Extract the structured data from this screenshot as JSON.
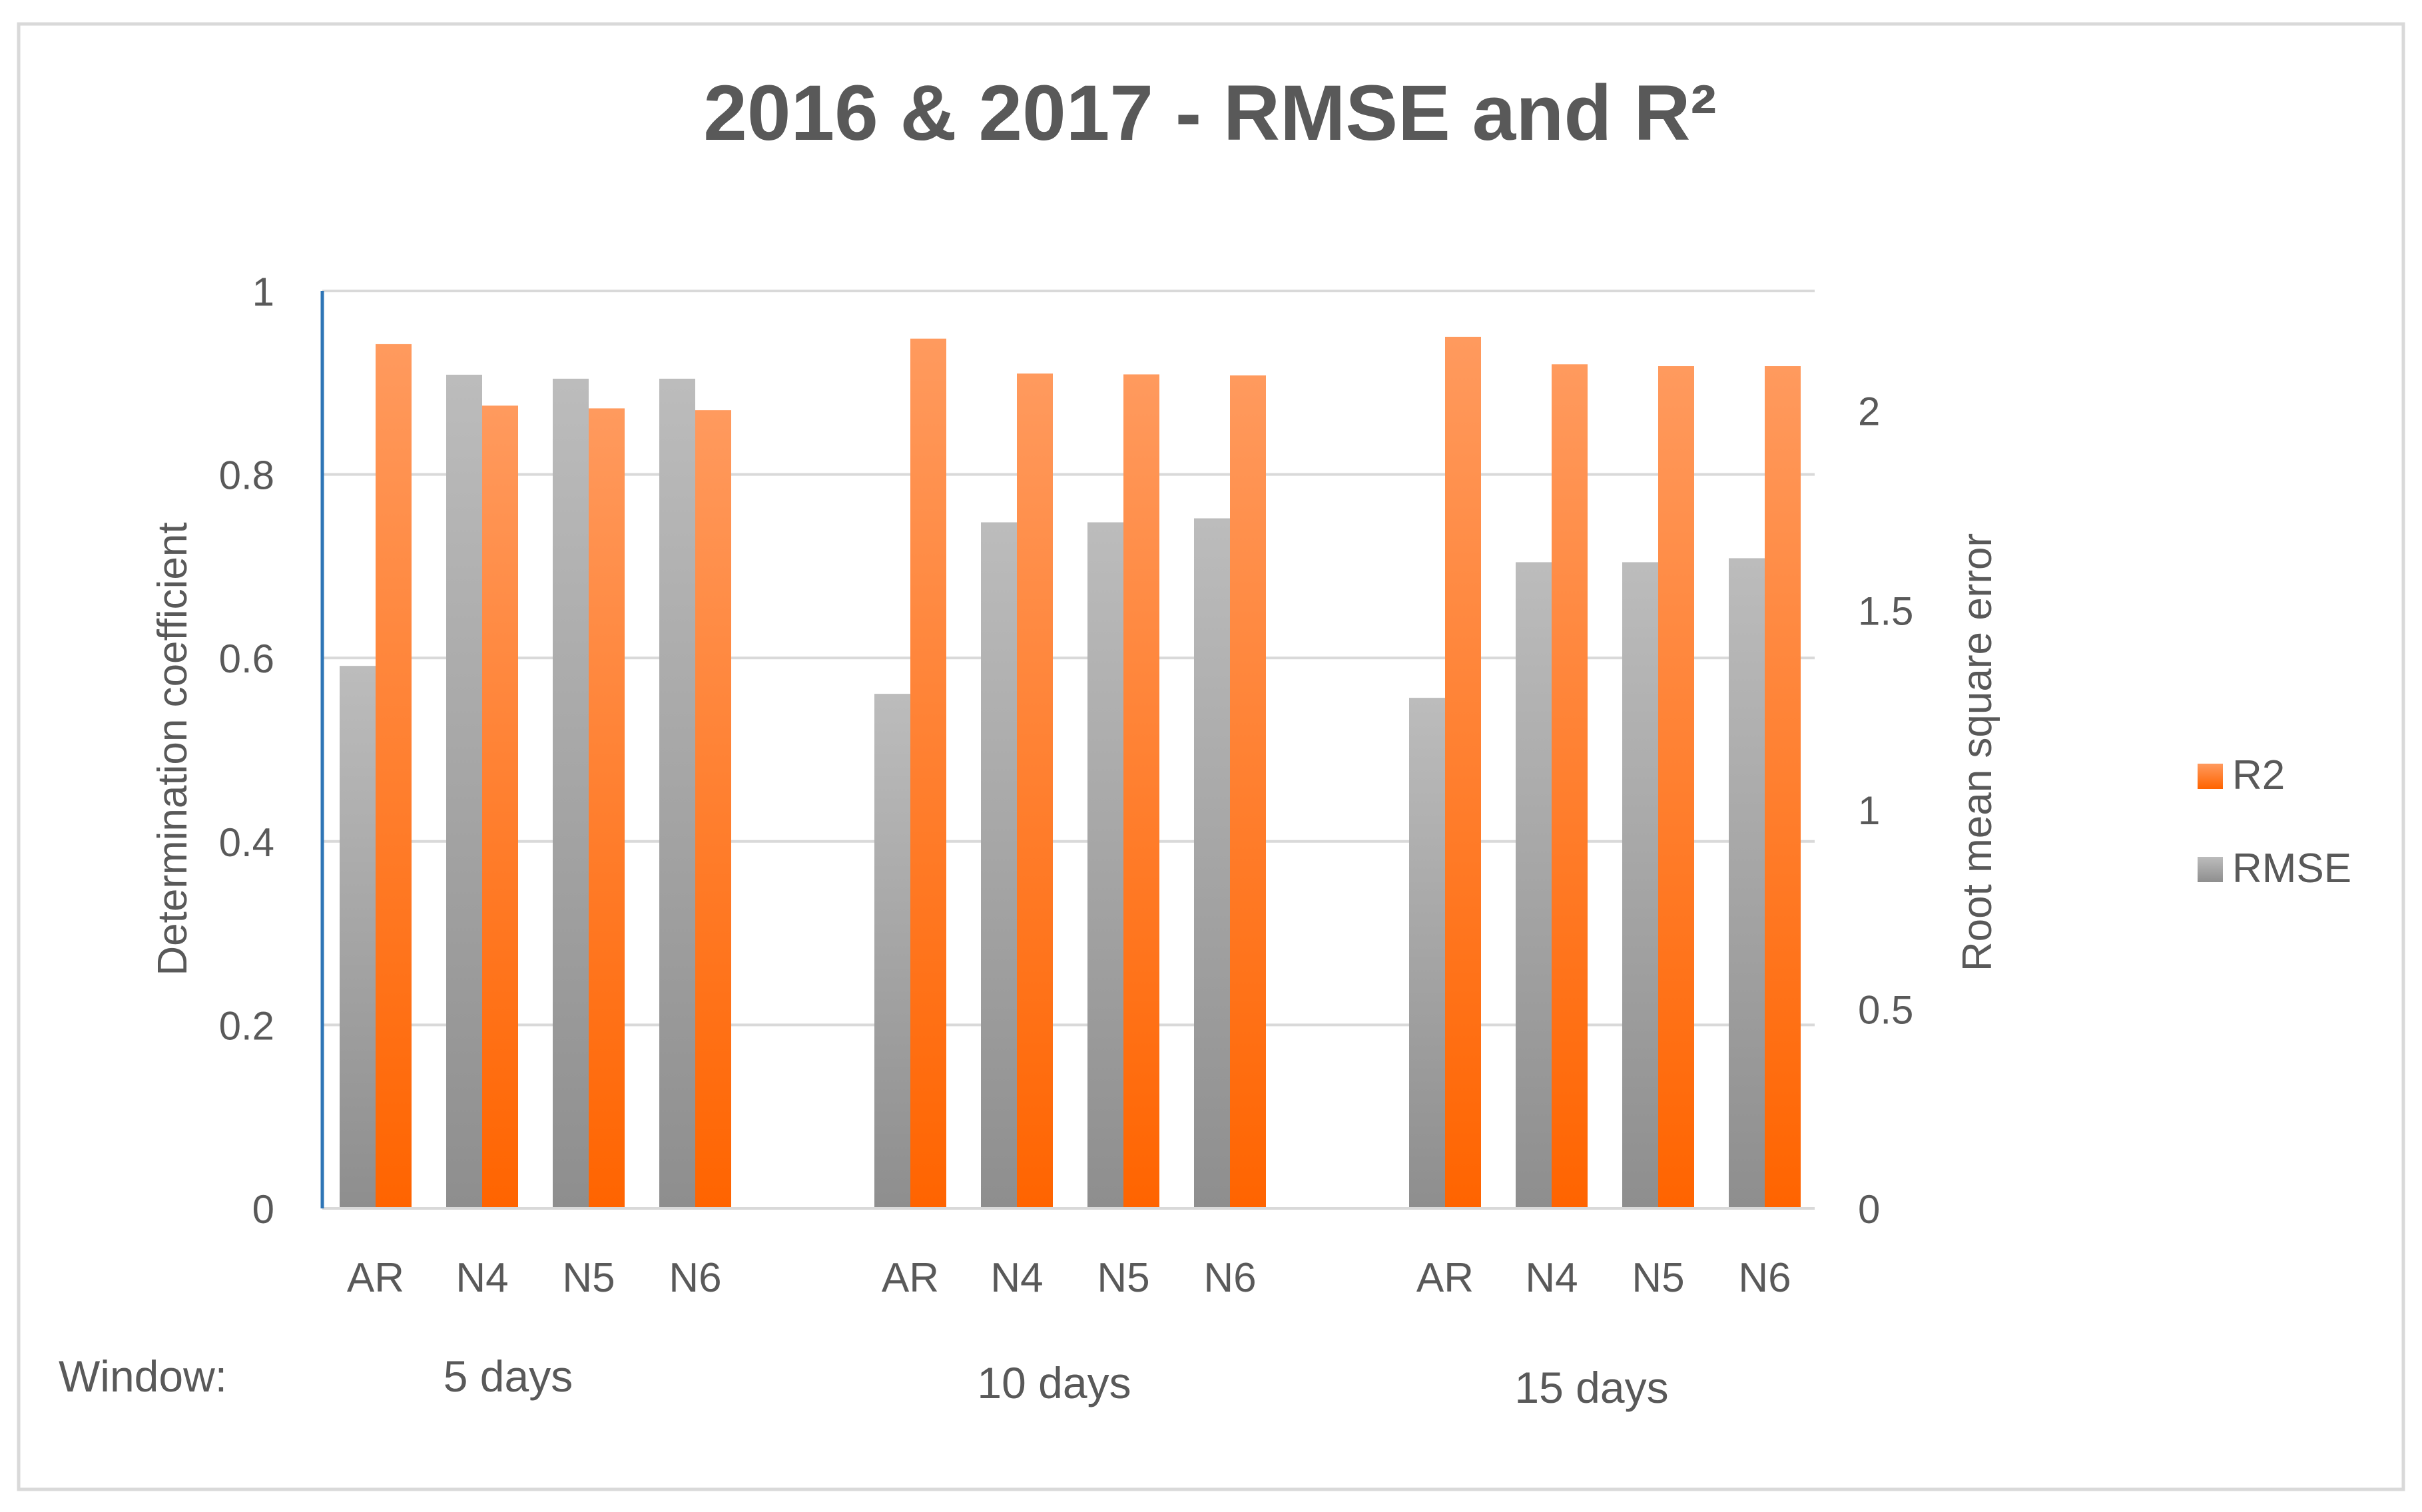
{
  "chart_data": {
    "type": "bar",
    "title": "2016 & 2017 - RMSE and R²",
    "ylabel_left": "Determination coefficient",
    "ylabel_right": "Root mean square error",
    "left_axis": {
      "ylim": [
        0,
        1
      ],
      "ticks": [
        "0",
        "0.2",
        "0.4",
        "0.6",
        "0.8",
        "1"
      ]
    },
    "right_axis": {
      "ylim": [
        0,
        2.3
      ],
      "ticks": [
        "0",
        "0.5",
        "1",
        "1.5",
        "2"
      ]
    },
    "grid": true,
    "legend_position": "right",
    "window_label": "Window:",
    "groups": [
      {
        "label": "5 days",
        "categories": [
          "AR",
          "N4",
          "N5",
          "N6"
        ]
      },
      {
        "label": "10 days",
        "categories": [
          "AR",
          "N4",
          "N5",
          "N6"
        ]
      },
      {
        "label": "15 days",
        "categories": [
          "AR",
          "N4",
          "N5",
          "N6"
        ]
      }
    ],
    "series": [
      {
        "name": "R2",
        "axis": "left",
        "color": "#ff6a0d",
        "values": [
          0.942,
          0.875,
          0.872,
          0.87,
          0.948,
          0.91,
          0.909,
          0.908,
          0.95,
          0.92,
          0.918,
          0.918
        ]
      },
      {
        "name": "RMSE",
        "axis": "right",
        "color": "#a6a6a6",
        "values": [
          1.36,
          2.09,
          2.08,
          2.08,
          1.29,
          1.72,
          1.72,
          1.73,
          1.28,
          1.62,
          1.62,
          1.63
        ]
      }
    ]
  }
}
